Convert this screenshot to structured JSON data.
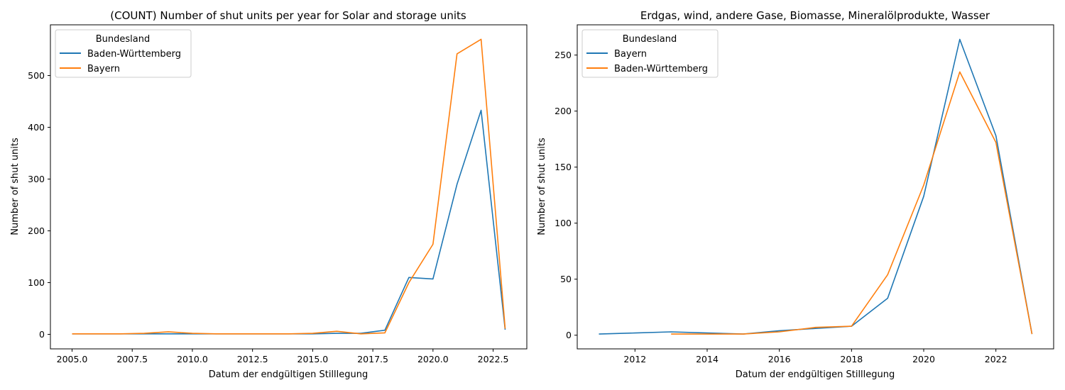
{
  "charts": [
    {
      "type": "line",
      "title": "(COUNT) Number of shut units per year for Solar and storage units",
      "xlabel": "Datum der endgültigen Stilllegung",
      "ylabel": "Number of shut units",
      "xlim": [
        2004.1,
        2023.9
      ],
      "ylim": [
        -28,
        598
      ],
      "xticks": [
        "2005.0",
        "2007.5",
        "2010.0",
        "2012.5",
        "2015.0",
        "2017.5",
        "2020.0",
        "2022.5"
      ],
      "yticks": [
        "0",
        "100",
        "200",
        "300",
        "400",
        "500"
      ],
      "legend": {
        "title": "Bundesland",
        "position": "upper-left"
      },
      "series": [
        {
          "name": "Baden-Württemberg",
          "color": "#1f77b4",
          "x": [
            2005,
            2006,
            2007,
            2008,
            2009,
            2010,
            2011,
            2012,
            2013,
            2014,
            2015,
            2016,
            2017,
            2018,
            2019,
            2020,
            2021,
            2022,
            2023
          ],
          "y": [
            1,
            1,
            1,
            1,
            1,
            1,
            1,
            1,
            1,
            1,
            1,
            2,
            2,
            8,
            110,
            107,
            290,
            433,
            9
          ]
        },
        {
          "name": "Bayern",
          "color": "#ff7f0e",
          "x": [
            2005,
            2006,
            2007,
            2008,
            2009,
            2010,
            2011,
            2012,
            2013,
            2014,
            2015,
            2016,
            2017,
            2018,
            2019,
            2020,
            2021,
            2022,
            2023
          ],
          "y": [
            1,
            1,
            1,
            2,
            5,
            2,
            1,
            1,
            1,
            1,
            2,
            6,
            1,
            3,
            100,
            174,
            542,
            570,
            11
          ]
        }
      ]
    },
    {
      "type": "line",
      "title": "Erdgas, wind, andere Gase, Biomasse, Mineralölprodukte, Wasser",
      "xlabel": "Datum der endgültigen Stilllegung",
      "ylabel": "Number of shut units",
      "xlim": [
        2010.4,
        2023.6
      ],
      "ylim": [
        -12.2,
        277
      ],
      "xticks": [
        "2012",
        "2014",
        "2016",
        "2018",
        "2020",
        "2022"
      ],
      "yticks": [
        "0",
        "50",
        "100",
        "150",
        "200",
        "250"
      ],
      "legend": {
        "title": "Bundesland",
        "position": "upper-left"
      },
      "series": [
        {
          "name": "Bayern",
          "color": "#1f77b4",
          "x": [
            2011,
            2012,
            2013,
            2014,
            2015,
            2016,
            2017,
            2018,
            2019,
            2020,
            2021,
            2022,
            2023
          ],
          "y": [
            1,
            2,
            3,
            2,
            1,
            4,
            6,
            8,
            33,
            124,
            264,
            178,
            1
          ]
        },
        {
          "name": "Baden-Württemberg",
          "color": "#ff7f0e",
          "x": [
            2013,
            2014,
            2015,
            2016,
            2017,
            2018,
            2019,
            2020,
            2021,
            2022,
            2023
          ],
          "y": [
            1,
            1,
            1,
            3,
            7,
            8,
            54,
            134,
            235,
            172,
            1
          ]
        }
      ]
    }
  ]
}
